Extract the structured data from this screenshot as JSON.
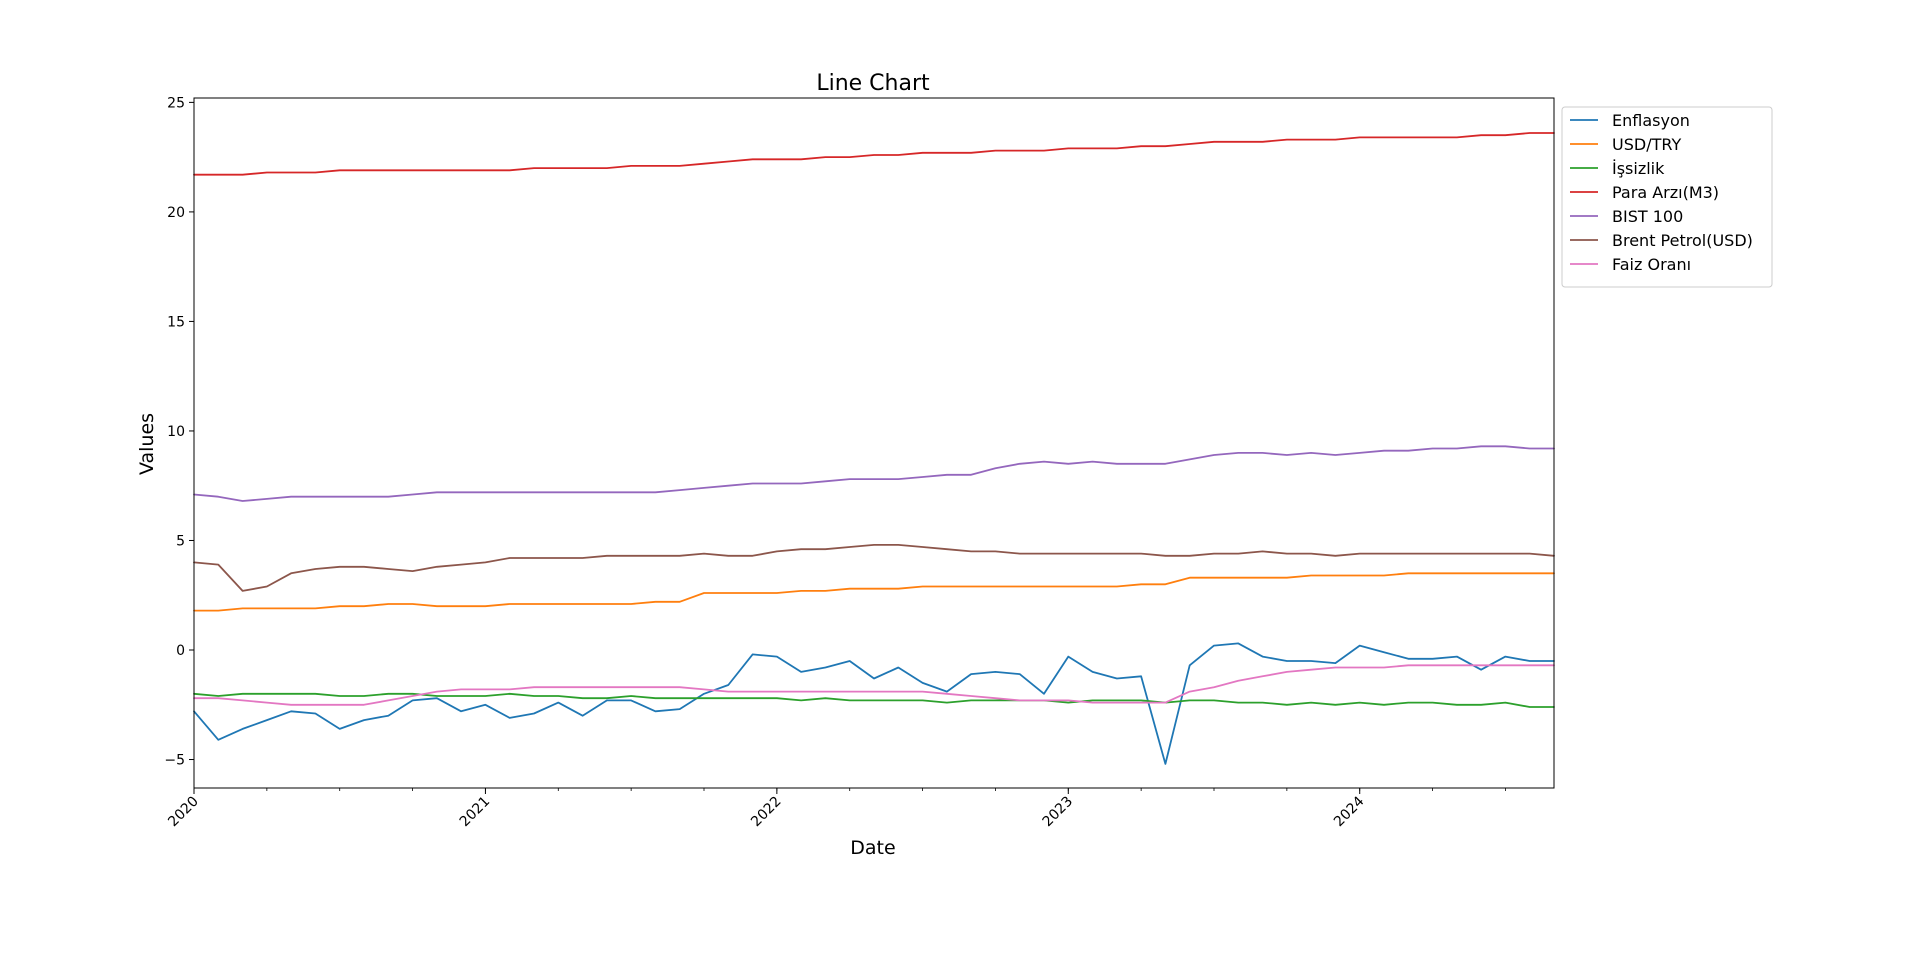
{
  "chart_data": {
    "type": "line",
    "title": "Line Chart",
    "xlabel": "Date",
    "ylabel": "Values",
    "xlim": [
      "2020-01",
      "2024-09"
    ],
    "ylim": [
      -6.3,
      25.2
    ],
    "y_ticks": [
      -5,
      0,
      5,
      10,
      15,
      20,
      25
    ],
    "x_ticks": [
      "2020",
      "2021",
      "2022",
      "2023",
      "2024"
    ],
    "x_tick_rotation": 45,
    "grid": false,
    "legend_position": "outside-top-right",
    "x": [
      "2020-01",
      "2020-02",
      "2020-03",
      "2020-04",
      "2020-05",
      "2020-06",
      "2020-07",
      "2020-08",
      "2020-09",
      "2020-10",
      "2020-11",
      "2020-12",
      "2021-01",
      "2021-02",
      "2021-03",
      "2021-04",
      "2021-05",
      "2021-06",
      "2021-07",
      "2021-08",
      "2021-09",
      "2021-10",
      "2021-11",
      "2021-12",
      "2022-01",
      "2022-02",
      "2022-03",
      "2022-04",
      "2022-05",
      "2022-06",
      "2022-07",
      "2022-08",
      "2022-09",
      "2022-10",
      "2022-11",
      "2022-12",
      "2023-01",
      "2023-02",
      "2023-03",
      "2023-04",
      "2023-05",
      "2023-06",
      "2023-07",
      "2023-08",
      "2023-09",
      "2023-10",
      "2023-11",
      "2023-12",
      "2024-01",
      "2024-02",
      "2024-03",
      "2024-04",
      "2024-05",
      "2024-06",
      "2024-07",
      "2024-08",
      "2024-09"
    ],
    "series": [
      {
        "name": "Enflasyon",
        "color": "#1f77b4",
        "values": [
          -2.8,
          -4.1,
          -3.6,
          -3.2,
          -2.8,
          -2.9,
          -3.6,
          -3.2,
          -3.0,
          -2.3,
          -2.2,
          -2.8,
          -2.5,
          -3.1,
          -2.9,
          -2.4,
          -3.0,
          -2.3,
          -2.3,
          -2.8,
          -2.7,
          -2.0,
          -1.6,
          -0.2,
          -0.3,
          -1.0,
          -0.8,
          -0.5,
          -1.3,
          -0.8,
          -1.5,
          -1.9,
          -1.1,
          -1.0,
          -1.1,
          -2.0,
          -0.3,
          -1.0,
          -1.3,
          -1.2,
          -5.2,
          -0.7,
          0.2,
          0.3,
          -0.3,
          -0.5,
          -0.5,
          -0.6,
          0.2,
          -0.1,
          -0.4,
          -0.4,
          -0.3,
          -0.9,
          -0.3,
          -0.5,
          -0.5
        ]
      },
      {
        "name": "USD/TRY",
        "color": "#ff7f0e",
        "values": [
          1.8,
          1.8,
          1.9,
          1.9,
          1.9,
          1.9,
          2.0,
          2.0,
          2.1,
          2.1,
          2.0,
          2.0,
          2.0,
          2.1,
          2.1,
          2.1,
          2.1,
          2.1,
          2.1,
          2.2,
          2.2,
          2.6,
          2.6,
          2.6,
          2.6,
          2.7,
          2.7,
          2.8,
          2.8,
          2.8,
          2.9,
          2.9,
          2.9,
          2.9,
          2.9,
          2.9,
          2.9,
          2.9,
          2.9,
          3.0,
          3.0,
          3.3,
          3.3,
          3.3,
          3.3,
          3.3,
          3.4,
          3.4,
          3.4,
          3.4,
          3.5,
          3.5,
          3.5,
          3.5,
          3.5,
          3.5,
          3.5
        ]
      },
      {
        "name": "İşsizlik",
        "color": "#2ca02c",
        "values": [
          -2.0,
          -2.1,
          -2.0,
          -2.0,
          -2.0,
          -2.0,
          -2.1,
          -2.1,
          -2.0,
          -2.0,
          -2.1,
          -2.1,
          -2.1,
          -2.0,
          -2.1,
          -2.1,
          -2.2,
          -2.2,
          -2.1,
          -2.2,
          -2.2,
          -2.2,
          -2.2,
          -2.2,
          -2.2,
          -2.3,
          -2.2,
          -2.3,
          -2.3,
          -2.3,
          -2.3,
          -2.4,
          -2.3,
          -2.3,
          -2.3,
          -2.3,
          -2.4,
          -2.3,
          -2.3,
          -2.3,
          -2.4,
          -2.3,
          -2.3,
          -2.4,
          -2.4,
          -2.5,
          -2.4,
          -2.5,
          -2.4,
          -2.5,
          -2.4,
          -2.4,
          -2.5,
          -2.5,
          -2.4,
          -2.6,
          -2.6
        ]
      },
      {
        "name": "Para Arzı(M3)",
        "color": "#d62728",
        "values": [
          21.7,
          21.7,
          21.7,
          21.8,
          21.8,
          21.8,
          21.9,
          21.9,
          21.9,
          21.9,
          21.9,
          21.9,
          21.9,
          21.9,
          22.0,
          22.0,
          22.0,
          22.0,
          22.1,
          22.1,
          22.1,
          22.2,
          22.3,
          22.4,
          22.4,
          22.4,
          22.5,
          22.5,
          22.6,
          22.6,
          22.7,
          22.7,
          22.7,
          22.8,
          22.8,
          22.8,
          22.9,
          22.9,
          22.9,
          23.0,
          23.0,
          23.1,
          23.2,
          23.2,
          23.2,
          23.3,
          23.3,
          23.3,
          23.4,
          23.4,
          23.4,
          23.4,
          23.4,
          23.5,
          23.5,
          23.6,
          23.6
        ]
      },
      {
        "name": "BIST 100",
        "color": "#9467bd",
        "values": [
          7.1,
          7.0,
          6.8,
          6.9,
          7.0,
          7.0,
          7.0,
          7.0,
          7.0,
          7.1,
          7.2,
          7.2,
          7.2,
          7.2,
          7.2,
          7.2,
          7.2,
          7.2,
          7.2,
          7.2,
          7.3,
          7.4,
          7.5,
          7.6,
          7.6,
          7.6,
          7.7,
          7.8,
          7.8,
          7.8,
          7.9,
          8.0,
          8.0,
          8.3,
          8.5,
          8.6,
          8.5,
          8.6,
          8.5,
          8.5,
          8.5,
          8.7,
          8.9,
          9.0,
          9.0,
          8.9,
          9.0,
          8.9,
          9.0,
          9.1,
          9.1,
          9.2,
          9.2,
          9.3,
          9.3,
          9.2,
          9.2
        ]
      },
      {
        "name": "Brent Petrol(USD)",
        "color": "#8c564b",
        "values": [
          4.0,
          3.9,
          2.7,
          2.9,
          3.5,
          3.7,
          3.8,
          3.8,
          3.7,
          3.6,
          3.8,
          3.9,
          4.0,
          4.2,
          4.2,
          4.2,
          4.2,
          4.3,
          4.3,
          4.3,
          4.3,
          4.4,
          4.3,
          4.3,
          4.5,
          4.6,
          4.6,
          4.7,
          4.8,
          4.8,
          4.7,
          4.6,
          4.5,
          4.5,
          4.4,
          4.4,
          4.4,
          4.4,
          4.4,
          4.4,
          4.3,
          4.3,
          4.4,
          4.4,
          4.5,
          4.4,
          4.4,
          4.3,
          4.4,
          4.4,
          4.4,
          4.4,
          4.4,
          4.4,
          4.4,
          4.4,
          4.3
        ]
      },
      {
        "name": "Faiz Oranı",
        "color": "#e377c2",
        "values": [
          -2.2,
          -2.2,
          -2.3,
          -2.4,
          -2.5,
          -2.5,
          -2.5,
          -2.5,
          -2.3,
          -2.1,
          -1.9,
          -1.8,
          -1.8,
          -1.8,
          -1.7,
          -1.7,
          -1.7,
          -1.7,
          -1.7,
          -1.7,
          -1.7,
          -1.8,
          -1.9,
          -1.9,
          -1.9,
          -1.9,
          -1.9,
          -1.9,
          -1.9,
          -1.9,
          -1.9,
          -2.0,
          -2.1,
          -2.2,
          -2.3,
          -2.3,
          -2.3,
          -2.4,
          -2.4,
          -2.4,
          -2.4,
          -1.9,
          -1.7,
          -1.4,
          -1.2,
          -1.0,
          -0.9,
          -0.8,
          -0.8,
          -0.8,
          -0.7,
          -0.7,
          -0.7,
          -0.7,
          -0.7,
          -0.7,
          -0.7
        ]
      }
    ]
  }
}
